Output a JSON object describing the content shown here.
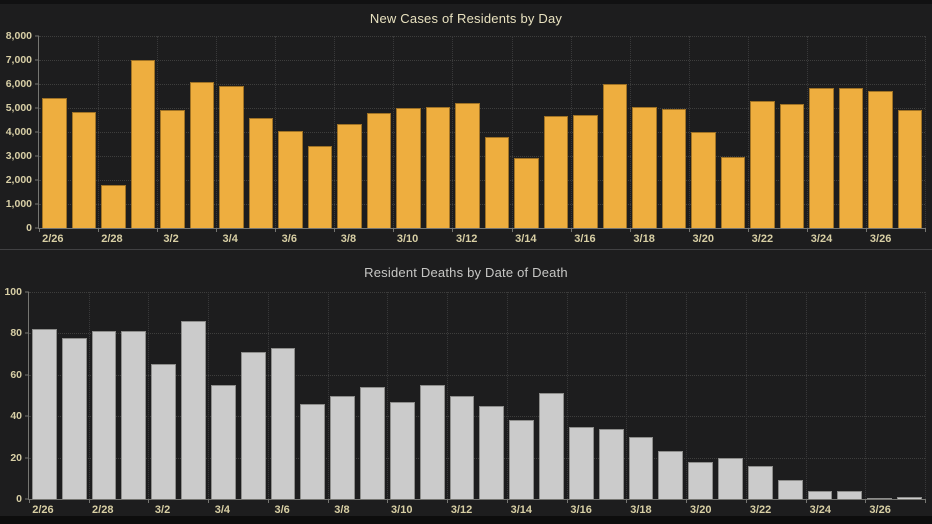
{
  "theme": {
    "background": "#1d1d1e",
    "top_strip": "#111112",
    "bottom_strip": "#0d0d0d",
    "divider": "#414143",
    "axis_color": "#767672",
    "grid_color": "#3e3e3d",
    "tick_label_color": "#d8cfa4"
  },
  "chart_data": [
    {
      "type": "bar",
      "title": "New Cases of Residents by Day",
      "title_color": "#e8e1bf",
      "bar_color": "#eeae3f",
      "xlabel": "",
      "ylabel": "",
      "grid": true,
      "legend": "none",
      "ylim": [
        0,
        8000
      ],
      "ytick_values": [
        8000,
        7000,
        6000,
        5000,
        4000,
        3000,
        2000,
        1000,
        0
      ],
      "ytick_labels": [
        "8,000",
        "7,000",
        "6,000",
        "5,000",
        "4,000",
        "3,000",
        "2,000",
        "1,000",
        "0"
      ],
      "xticks_every": 2,
      "x": [
        "2/26",
        "2/27",
        "2/28",
        "3/1",
        "3/2",
        "3/3",
        "3/4",
        "3/5",
        "3/6",
        "3/7",
        "3/8",
        "3/9",
        "3/10",
        "3/11",
        "3/12",
        "3/13",
        "3/14",
        "3/15",
        "3/16",
        "3/17",
        "3/18",
        "3/19",
        "3/20",
        "3/21",
        "3/22",
        "3/23",
        "3/24",
        "3/25",
        "3/26",
        "3/27"
      ],
      "values": [
        5400,
        4850,
        1800,
        7000,
        4900,
        6100,
        5900,
        4600,
        4050,
        3400,
        4350,
        4800,
        5000,
        5050,
        5200,
        3800,
        2900,
        4650,
        4700,
        6000,
        5050,
        4950,
        4000,
        2950,
        5300,
        5150,
        5850,
        5850,
        5700,
        4900
      ]
    },
    {
      "type": "bar",
      "title": "Resident Deaths by Date of Death",
      "title_color": "#c7c7c5",
      "bar_color": "#cbcbcb",
      "xlabel": "",
      "ylabel": "",
      "grid": true,
      "legend": "none",
      "ylim": [
        0,
        100
      ],
      "ytick_values": [
        100,
        80,
        60,
        40,
        20,
        0
      ],
      "ytick_labels": [
        "100",
        "80",
        "60",
        "40",
        "20",
        "0"
      ],
      "xticks_every": 2,
      "x": [
        "2/26",
        "2/27",
        "2/28",
        "3/1",
        "3/2",
        "3/3",
        "3/4",
        "3/5",
        "3/6",
        "3/7",
        "3/8",
        "3/9",
        "3/10",
        "3/11",
        "3/12",
        "3/13",
        "3/14",
        "3/15",
        "3/16",
        "3/17",
        "3/18",
        "3/19",
        "3/20",
        "3/21",
        "3/22",
        "3/23",
        "3/24",
        "3/25",
        "3/26",
        "3/27"
      ],
      "values": [
        82,
        78,
        81,
        81,
        65,
        86,
        55,
        71,
        73,
        46,
        50,
        54,
        47,
        55,
        50,
        45,
        38,
        51,
        35,
        34,
        30,
        23,
        18,
        20,
        16,
        9,
        4,
        4,
        0,
        1
      ]
    }
  ]
}
